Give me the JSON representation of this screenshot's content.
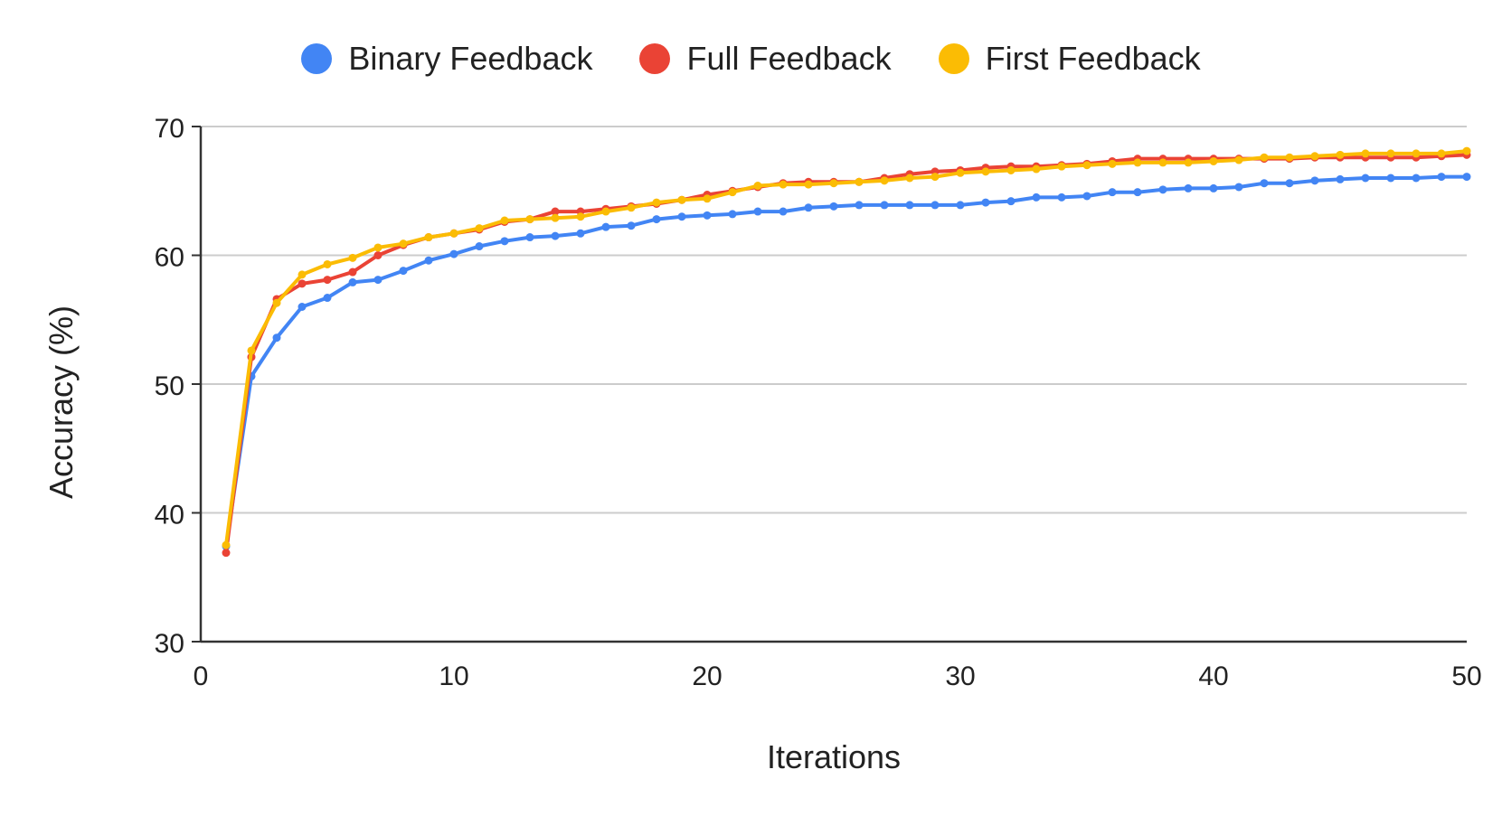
{
  "chart_data": {
    "type": "line",
    "title": "",
    "xlabel": "Iterations",
    "ylabel": "Accuracy (%)",
    "xlim": [
      0,
      50
    ],
    "ylim": [
      30,
      70
    ],
    "x_ticks": [
      0,
      10,
      20,
      30,
      40,
      50
    ],
    "y_ticks": [
      30,
      40,
      50,
      60,
      70
    ],
    "grid": "horizontal",
    "legend_position": "top-center",
    "x": [
      1,
      2,
      3,
      4,
      5,
      6,
      7,
      8,
      9,
      10,
      11,
      12,
      13,
      14,
      15,
      16,
      17,
      18,
      19,
      20,
      21,
      22,
      23,
      24,
      25,
      26,
      27,
      28,
      29,
      30,
      31,
      32,
      33,
      34,
      35,
      36,
      37,
      38,
      39,
      40,
      41,
      42,
      43,
      44,
      45,
      46,
      47,
      48,
      49,
      50
    ],
    "series": [
      {
        "name": "Binary Feedback",
        "color": "#4285F4",
        "values": [
          37.4,
          50.6,
          53.6,
          56.0,
          56.7,
          57.9,
          58.1,
          58.8,
          59.6,
          60.1,
          60.7,
          61.1,
          61.4,
          61.5,
          61.7,
          62.2,
          62.3,
          62.8,
          63.0,
          63.1,
          63.2,
          63.4,
          63.4,
          63.7,
          63.8,
          63.9,
          63.9,
          63.9,
          63.9,
          63.9,
          64.1,
          64.2,
          64.5,
          64.5,
          64.6,
          64.9,
          64.9,
          65.1,
          65.2,
          65.2,
          65.3,
          65.6,
          65.6,
          65.8,
          65.9,
          66.0,
          66.0,
          66.0,
          66.1,
          66.1
        ]
      },
      {
        "name": "Full Feedback",
        "color": "#EA4335",
        "values": [
          36.9,
          52.1,
          56.6,
          57.8,
          58.1,
          58.7,
          60.0,
          60.8,
          61.4,
          61.7,
          62.0,
          62.6,
          62.8,
          63.4,
          63.4,
          63.6,
          63.8,
          64.0,
          64.3,
          64.7,
          65.0,
          65.3,
          65.6,
          65.7,
          65.7,
          65.7,
          66.0,
          66.3,
          66.5,
          66.6,
          66.8,
          66.9,
          66.9,
          67.0,
          67.1,
          67.3,
          67.5,
          67.5,
          67.5,
          67.5,
          67.5,
          67.5,
          67.5,
          67.6,
          67.6,
          67.6,
          67.6,
          67.6,
          67.7,
          67.8
        ]
      },
      {
        "name": "First Feedback",
        "color": "#FBBC04",
        "values": [
          37.5,
          52.6,
          56.3,
          58.5,
          59.3,
          59.8,
          60.6,
          60.9,
          61.4,
          61.7,
          62.1,
          62.7,
          62.8,
          62.9,
          63.0,
          63.4,
          63.7,
          64.1,
          64.3,
          64.4,
          64.9,
          65.4,
          65.5,
          65.5,
          65.6,
          65.7,
          65.8,
          66.0,
          66.1,
          66.4,
          66.5,
          66.6,
          66.7,
          66.9,
          67.0,
          67.1,
          67.2,
          67.2,
          67.2,
          67.3,
          67.4,
          67.6,
          67.6,
          67.7,
          67.8,
          67.9,
          67.9,
          67.9,
          67.9,
          68.1
        ]
      }
    ]
  }
}
